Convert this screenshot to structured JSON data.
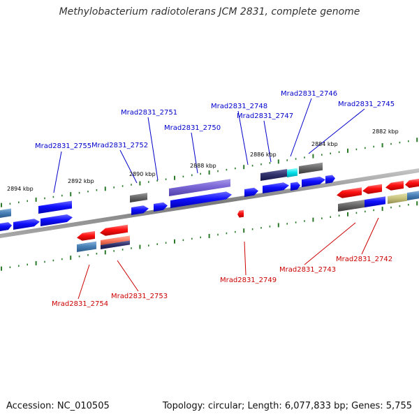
{
  "title": "Methylobacterium radiotolerans JCM 2831, complete genome",
  "footer": {
    "accession": "Accession: NC_010505",
    "summary": "Topology: circular; Length: 6,077,833 bp; Genes: 5,755"
  },
  "colors": {
    "forward_label": "#0000cc",
    "reverse_label": "#cc0000",
    "backbone": "#888888",
    "tick": "#2a7a2a"
  },
  "scale_labels": [
    "2894 kbp",
    "2892 kbp",
    "2890 kbp",
    "2888 kbp",
    "2886 kbp",
    "2884 kbp",
    "2882 kbp"
  ],
  "gene_labels": {
    "forward": [
      "Mrad2831_2755",
      "Mrad2831_2752",
      "Mrad2831_2751",
      "Mrad2831_2750",
      "Mrad2831_2748",
      "Mrad2831_2747",
      "Mrad2831_2746",
      "Mrad2831_2745"
    ],
    "reverse": [
      "Mrad2831_2754",
      "Mrad2831_2753",
      "Mrad2831_2749",
      "Mrad2831_2743",
      "Mrad2831_2742"
    ]
  }
}
